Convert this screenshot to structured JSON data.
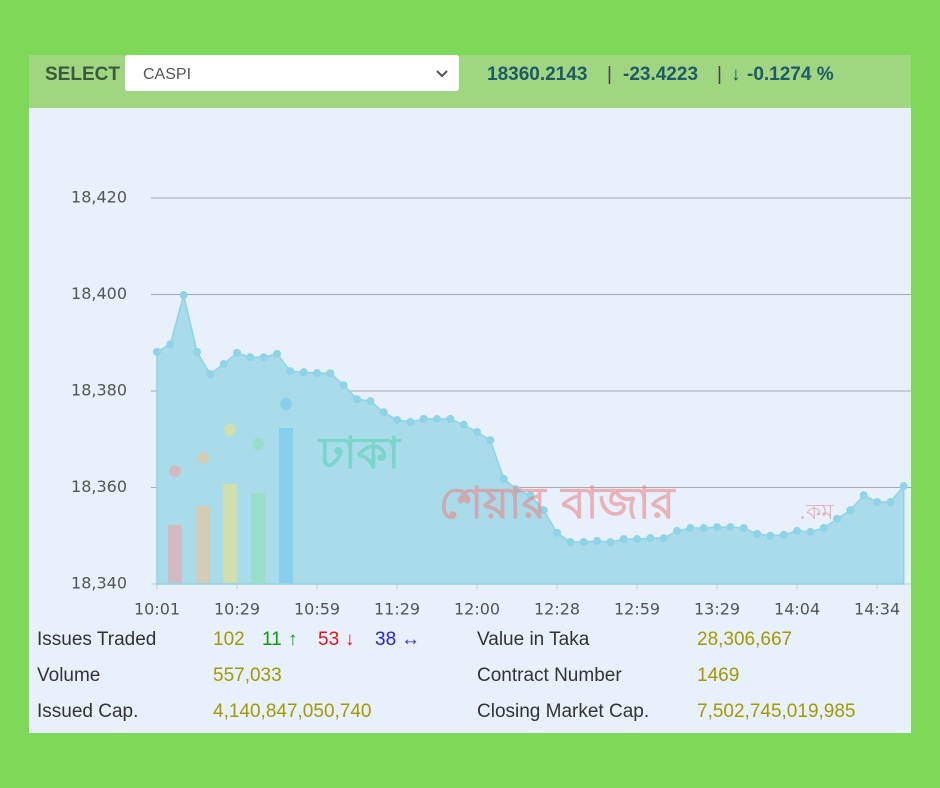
{
  "header": {
    "select_label": "SELECT",
    "dropdown_value": "CASPI",
    "index_value": "18360.2143",
    "separator": "|",
    "change": "-23.4223",
    "percent_arrow": "↓",
    "percent_change": "-0.1274 %"
  },
  "chart_data": {
    "type": "area",
    "series": [
      {
        "name": "CASPI",
        "color": "#a9dcea",
        "marker_color": "#8fd3e6",
        "values": [
          18388.1,
          18389.7,
          18399.9,
          18388.1,
          18383.5,
          18385.6,
          18387.9,
          18387.0,
          18387.0,
          18387.7,
          18384.1,
          18383.9,
          18383.7,
          18383.7,
          18381.2,
          18378.3,
          18377.9,
          18375.6,
          18374.0,
          18373.6,
          18374.2,
          18374.2,
          18374.2,
          18373.0,
          18371.5,
          18369.8,
          18361.8,
          18359.5,
          18358.4,
          18355.3,
          18350.6,
          18348.7,
          18348.7,
          18348.9,
          18348.7,
          18349.3,
          18349.3,
          18349.5,
          18349.5,
          18351.0,
          18351.6,
          18351.6,
          18351.8,
          18351.8,
          18351.6,
          18350.4,
          18350.0,
          18350.2,
          18351.0,
          18350.8,
          18351.6,
          18353.5,
          18355.3,
          18358.4,
          18357.0,
          18357.0,
          18360.3
        ]
      }
    ],
    "categories": [
      "10:01",
      null,
      null,
      null,
      null,
      null,
      "10:29",
      null,
      null,
      null,
      null,
      null,
      "10:59",
      null,
      null,
      null,
      null,
      null,
      "11:29",
      null,
      null,
      null,
      null,
      null,
      "12:00",
      null,
      null,
      null,
      null,
      null,
      "12:28",
      null,
      null,
      null,
      null,
      null,
      "12:59",
      null,
      null,
      null,
      null,
      null,
      "13:29",
      null,
      null,
      null,
      null,
      null,
      "14:04",
      null,
      null,
      null,
      null,
      null,
      "14:34",
      null,
      null
    ],
    "ylim": [
      18340,
      18420
    ],
    "yticks": [
      {
        "value": 18340,
        "label": "18,340"
      },
      {
        "value": 18360,
        "label": "18,360"
      },
      {
        "value": 18380,
        "label": "18,380"
      },
      {
        "value": 18400,
        "label": "18,400"
      },
      {
        "value": 18420,
        "label": "18,420"
      }
    ],
    "grid": true,
    "watermark": {
      "line1": "ঢাকা",
      "line2": "শেয়ার বাজার",
      "suffix": ".কম"
    }
  },
  "stats": {
    "rows": [
      {
        "label": "Issues Traded",
        "value": "102",
        "up": "11",
        "up_arrow": "↑",
        "down": "53",
        "down_arrow": "↓",
        "unchanged": "38",
        "unchanged_arrow": "↔",
        "label2": "Value in Taka",
        "value2": "28,306,667"
      },
      {
        "label": "Volume",
        "value": "557,033",
        "label2": "Contract Number",
        "value2": "1469"
      },
      {
        "label": "Issued Cap.",
        "value": "4,140,847,050,740",
        "label2": "Closing Market Cap.",
        "value2": "7,502,745,019,985"
      }
    ]
  }
}
